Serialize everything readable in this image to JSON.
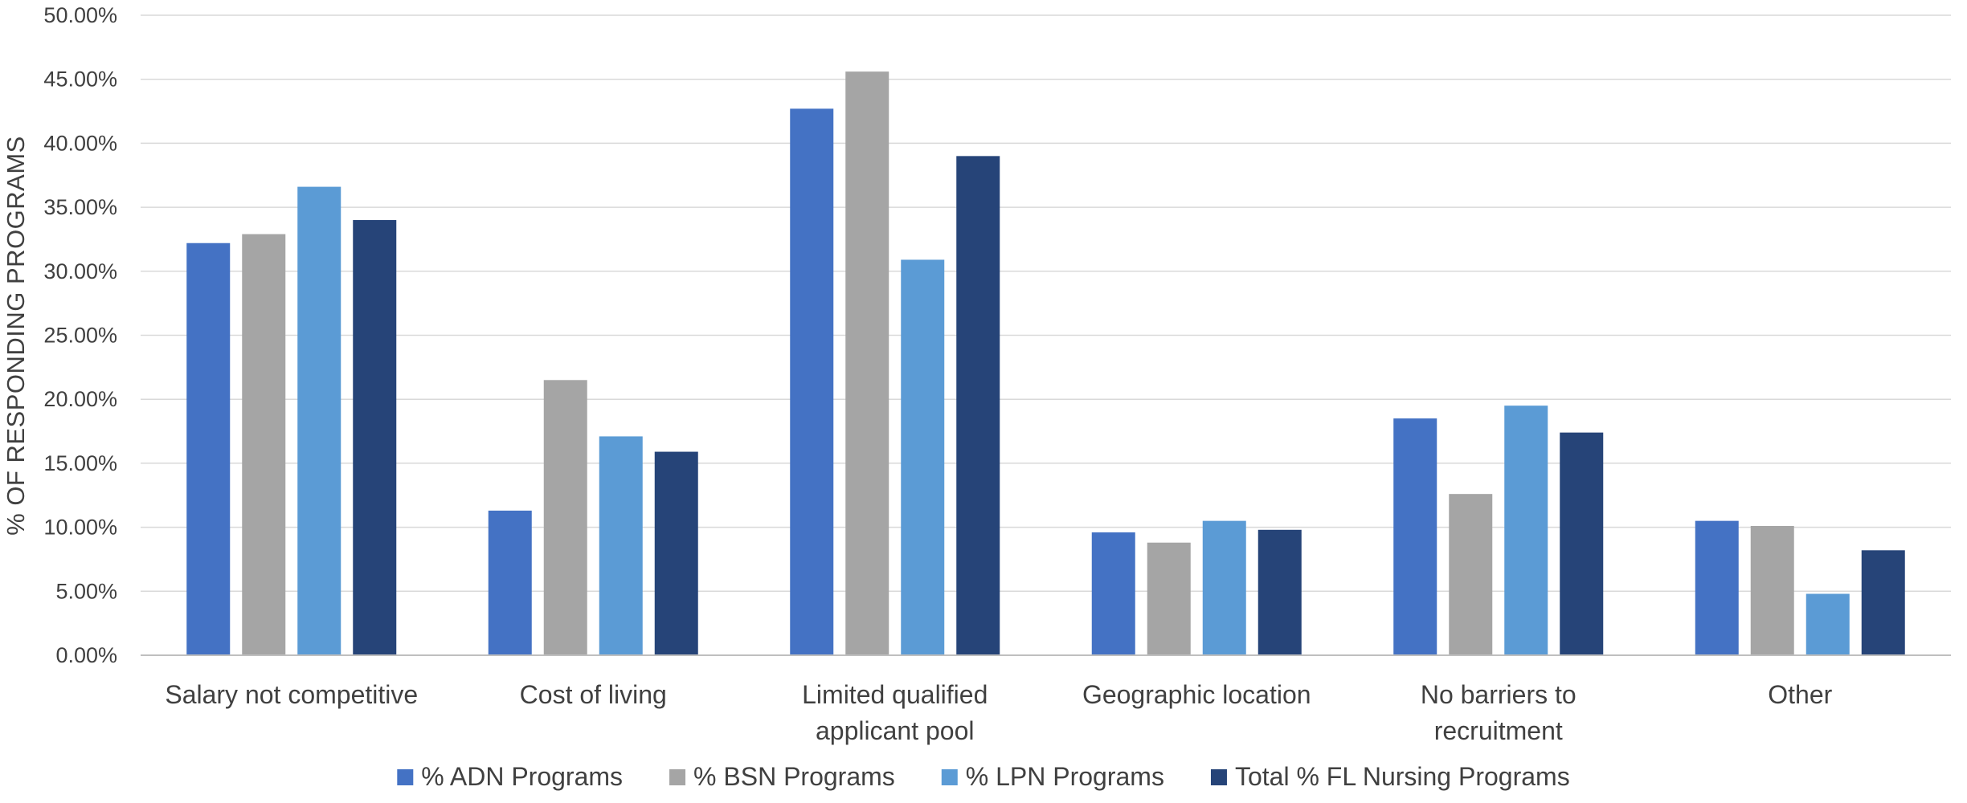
{
  "chart_data": {
    "type": "bar",
    "title": "",
    "xlabel": "",
    "ylabel": "% OF RESPONDING PROGRAMS",
    "ylim": [
      0,
      0.5
    ],
    "yticks": [
      0,
      0.05,
      0.1,
      0.15,
      0.2,
      0.25,
      0.3,
      0.35,
      0.4,
      0.45,
      0.5
    ],
    "ytick_labels": [
      "0.00%",
      "5.00%",
      "10.00%",
      "15.00%",
      "20.00%",
      "25.00%",
      "30.00%",
      "35.00%",
      "40.00%",
      "45.00%",
      "50.00%"
    ],
    "grid": true,
    "legend_position": "bottom",
    "categories": [
      [
        "Salary not competitive"
      ],
      [
        "Cost of living"
      ],
      [
        "Limited qualified",
        "applicant pool"
      ],
      [
        "Geographic location"
      ],
      [
        "No barriers to",
        "recruitment"
      ],
      [
        "Other"
      ]
    ],
    "series": [
      {
        "name": "% ADN Programs",
        "color": "#4472C4",
        "values": [
          0.322,
          0.113,
          0.427,
          0.096,
          0.185,
          0.105
        ]
      },
      {
        "name": "% BSN Programs",
        "color": "#A5A5A5",
        "values": [
          0.329,
          0.215,
          0.456,
          0.088,
          0.126,
          0.101
        ]
      },
      {
        "name": "% LPN Programs",
        "color": "#5B9BD5",
        "values": [
          0.366,
          0.171,
          0.309,
          0.105,
          0.195,
          0.048
        ]
      },
      {
        "name": "Total % FL Nursing Programs",
        "color": "#264478",
        "values": [
          0.34,
          0.159,
          0.39,
          0.098,
          0.174,
          0.082
        ]
      }
    ],
    "colors": {
      "gridline": "#D9D9D9",
      "axis": "#BFBFBF",
      "text": "#404040"
    }
  }
}
